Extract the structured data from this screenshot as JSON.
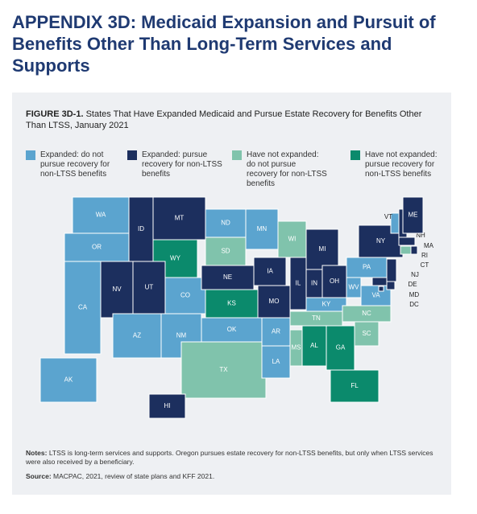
{
  "header": {
    "title": "APPENDIX 3D: Medicaid Expansion and Pursuit of Benefits Other Than Long-Term Services and Supports"
  },
  "figure": {
    "label": "FIGURE 3D-1.",
    "title": "States That Have Expanded Medicaid and Pursue Estate Recovery for Benefits Other Than LTSS, January 2021"
  },
  "legend": [
    {
      "label": "Expanded: do not pursue recovery for non-LTSS benefits",
      "color": "#5ba4cf"
    },
    {
      "label": "Expanded: pursue recovery for non-LTSS benefits",
      "color": "#1c2f5e"
    },
    {
      "label": "Have not expanded: do not pursue recovery for non-LTSS benefits",
      "color": "#80c3ac"
    },
    {
      "label": "Have not expanded: pursue recovery for non-LTSS benefits",
      "color": "#0b8a6c"
    }
  ],
  "states": [
    {
      "label": "WA",
      "group": 0
    },
    {
      "label": "OR",
      "group": 0
    },
    {
      "label": "CA",
      "group": 0
    },
    {
      "label": "NV",
      "group": 1
    },
    {
      "label": "ID",
      "group": 1
    },
    {
      "label": "MT",
      "group": 1
    },
    {
      "label": "WY",
      "group": 3
    },
    {
      "label": "UT",
      "group": 1
    },
    {
      "label": "CO",
      "group": 0
    },
    {
      "label": "AZ",
      "group": 0
    },
    {
      "label": "NM",
      "group": 0
    },
    {
      "label": "ND",
      "group": 0
    },
    {
      "label": "SD",
      "group": 2
    },
    {
      "label": "NE",
      "group": 1
    },
    {
      "label": "KS",
      "group": 3
    },
    {
      "label": "OK",
      "group": 0
    },
    {
      "label": "TX",
      "group": 2
    },
    {
      "label": "MN",
      "group": 0
    },
    {
      "label": "WI",
      "group": 2
    },
    {
      "label": "MI",
      "group": 1
    },
    {
      "label": "IA",
      "group": 1
    },
    {
      "label": "IL",
      "group": 1
    },
    {
      "label": "IN",
      "group": 1
    },
    {
      "label": "OH",
      "group": 1
    },
    {
      "label": "MO",
      "group": 1
    },
    {
      "label": "AR",
      "group": 0
    },
    {
      "label": "LA",
      "group": 0
    },
    {
      "label": "MS",
      "group": 2
    },
    {
      "label": "AL",
      "group": 3
    },
    {
      "label": "GA",
      "group": 3
    },
    {
      "label": "FL",
      "group": 3
    },
    {
      "label": "TN",
      "group": 2
    },
    {
      "label": "KY",
      "group": 0
    },
    {
      "label": "NC",
      "group": 2
    },
    {
      "label": "SC",
      "group": 2
    },
    {
      "label": "VA",
      "group": 0
    },
    {
      "label": "WV",
      "group": 0
    },
    {
      "label": "PA",
      "group": 0
    },
    {
      "label": "NY",
      "group": 1
    },
    {
      "label": "VT",
      "group": 0
    },
    {
      "label": "NH",
      "group": 1
    },
    {
      "label": "ME",
      "group": 1
    },
    {
      "label": "MA",
      "group": 1
    },
    {
      "label": "RI",
      "group": 1
    },
    {
      "label": "CT",
      "group": 2
    },
    {
      "label": "NJ",
      "group": 1
    },
    {
      "label": "DE",
      "group": 1
    },
    {
      "label": "MD",
      "group": 1
    },
    {
      "label": "DC",
      "group": 1
    },
    {
      "label": "AK",
      "group": 0
    },
    {
      "label": "HI",
      "group": 1
    }
  ],
  "notes": {
    "notes_label": "Notes:",
    "notes_text": "LTSS is long-term services and supports. Oregon pursues estate recovery for non-LTSS benefits, but only when LTSS services were also received by a beneficiary.",
    "source_label": "Source:",
    "source_text": "MACPAC, 2021, review of state plans and KFF 2021."
  }
}
